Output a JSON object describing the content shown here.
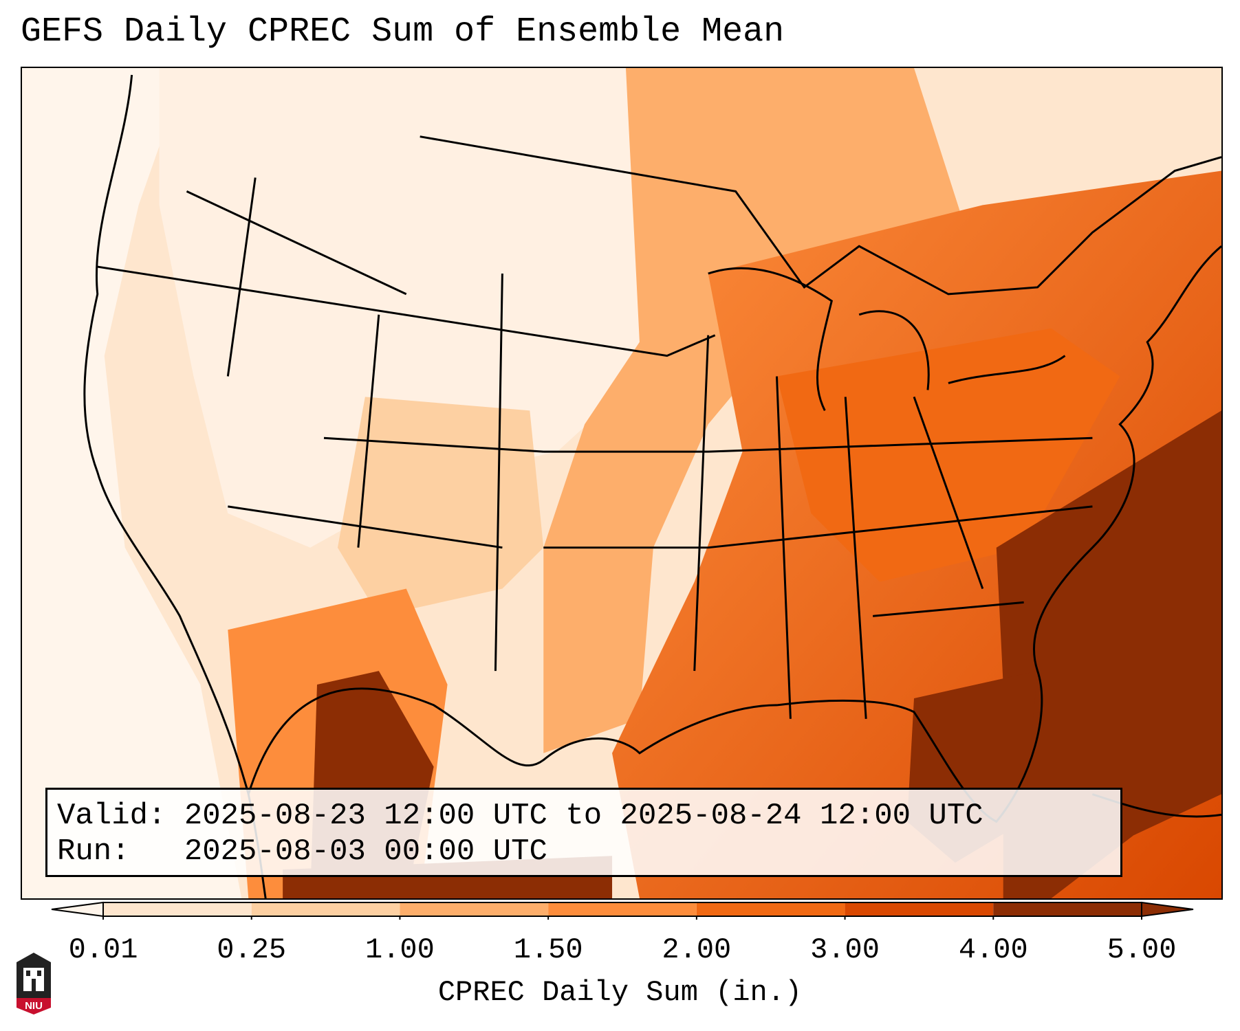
{
  "title": "GEFS Daily CPREC Sum of Ensemble Mean",
  "info": {
    "valid_label": "Valid:",
    "valid_value": "2025-08-23 12:00 UTC to 2025-08-24 12:00 UTC",
    "run_label": "Run:",
    "run_value": "2025-08-03 00:00 UTC"
  },
  "colorbar": {
    "label": "CPREC Daily Sum (in.)",
    "ticks": [
      "0.01",
      "0.25",
      "1.00",
      "1.50",
      "2.00",
      "3.00",
      "4.00",
      "5.00"
    ],
    "colors": [
      "#fff5eb",
      "#fee6ce",
      "#fdd0a2",
      "#fdae6b",
      "#fd8d3c",
      "#f16913",
      "#d94801",
      "#8c2d04"
    ],
    "extend": "both"
  },
  "logo": {
    "text": "NIU",
    "colors": {
      "red": "#c8102e",
      "dark": "#222222"
    }
  },
  "map": {
    "projection": "lambert-conformal",
    "region": "contiguous-united-states",
    "coastline_color": "#000000"
  }
}
